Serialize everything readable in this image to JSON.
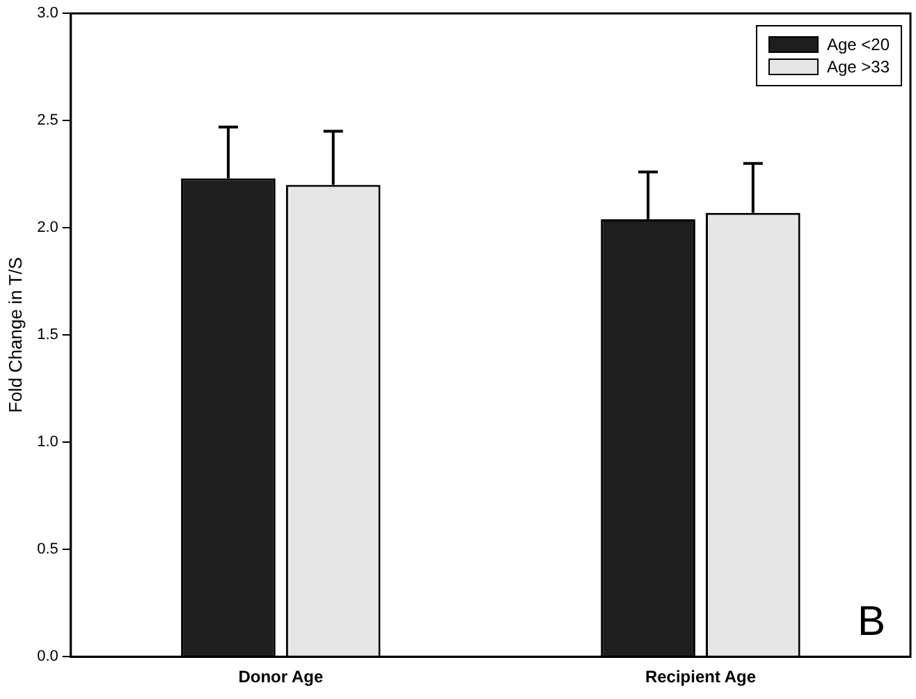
{
  "chart_data": {
    "type": "bar",
    "ylabel": "Fold Change in T/S",
    "categories": [
      "Donor Age",
      "Recipient Age"
    ],
    "series": [
      {
        "name": "Age <20",
        "color": "#1e1e1e",
        "values": [
          2.23,
          2.04
        ],
        "errors": [
          [
            2.23,
            2.47
          ],
          [
            2.04,
            2.26
          ]
        ]
      },
      {
        "name": "Age >33",
        "color": "#e6e6e6",
        "values": [
          2.2,
          2.07
        ],
        "errors": [
          [
            2.2,
            2.45
          ],
          [
            2.07,
            2.3
          ]
        ]
      }
    ],
    "ylim": [
      0,
      3
    ],
    "yticks": [
      {
        "value": 0,
        "label": "0.0"
      },
      {
        "value": 0.5,
        "label": "0.5"
      },
      {
        "value": 1,
        "label": "1.0"
      },
      {
        "value": 1.5,
        "label": "1.5"
      },
      {
        "value": 2,
        "label": "2.0"
      },
      {
        "value": 2.5,
        "label": "2.5"
      },
      {
        "value": 3,
        "label": "3.0"
      }
    ],
    "grid": false,
    "legend": "top right",
    "annotations": [
      "B"
    ]
  }
}
